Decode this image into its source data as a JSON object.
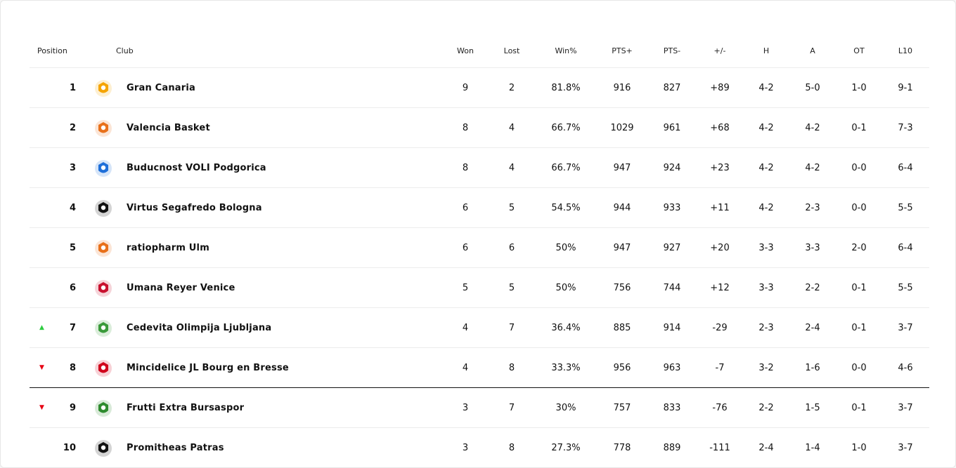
{
  "header": {
    "position": "Position",
    "club": "Club",
    "won": "Won",
    "lost": "Lost",
    "win_pct": "Win%",
    "pts_for": "PTS+",
    "pts_against": "PTS-",
    "diff": "+/-",
    "home": "H",
    "away": "A",
    "ot": "OT",
    "l10": "L10"
  },
  "rows": [
    {
      "position": "1",
      "club": "Gran Canaria",
      "won": "9",
      "lost": "2",
      "win_pct": "81.8%",
      "pts_for": "916",
      "pts_against": "827",
      "diff": "+89",
      "home": "4-2",
      "away": "5-0",
      "ot": "1-0",
      "l10": "9-1",
      "trend": "",
      "logo_icon": "gran-canaria-logo-icon",
      "logo_color": "#f5a400"
    },
    {
      "position": "2",
      "club": "Valencia Basket",
      "won": "8",
      "lost": "4",
      "win_pct": "66.7%",
      "pts_for": "1029",
      "pts_against": "961",
      "diff": "+68",
      "home": "4-2",
      "away": "4-2",
      "ot": "0-1",
      "l10": "7-3",
      "trend": "",
      "logo_icon": "valencia-basket-logo-icon",
      "logo_color": "#e8701a"
    },
    {
      "position": "3",
      "club": "Buducnost VOLI Podgorica",
      "won": "8",
      "lost": "4",
      "win_pct": "66.7%",
      "pts_for": "947",
      "pts_against": "924",
      "diff": "+23",
      "home": "4-2",
      "away": "4-2",
      "ot": "0-0",
      "l10": "6-4",
      "trend": "",
      "logo_icon": "buducnost-logo-icon",
      "logo_color": "#1e6fd9"
    },
    {
      "position": "4",
      "club": "Virtus Segafredo Bologna",
      "won": "6",
      "lost": "5",
      "win_pct": "54.5%",
      "pts_for": "944",
      "pts_against": "933",
      "diff": "+11",
      "home": "4-2",
      "away": "2-3",
      "ot": "0-0",
      "l10": "5-5",
      "trend": "",
      "logo_icon": "virtus-bologna-logo-icon",
      "logo_color": "#111111"
    },
    {
      "position": "5",
      "club": "ratiopharm Ulm",
      "won": "6",
      "lost": "6",
      "win_pct": "50%",
      "pts_for": "947",
      "pts_against": "927",
      "diff": "+20",
      "home": "3-3",
      "away": "3-3",
      "ot": "2-0",
      "l10": "6-4",
      "trend": "",
      "logo_icon": "ratiopharm-ulm-logo-icon",
      "logo_color": "#e8701a"
    },
    {
      "position": "6",
      "club": "Umana Reyer Venice",
      "won": "5",
      "lost": "5",
      "win_pct": "50%",
      "pts_for": "756",
      "pts_against": "744",
      "diff": "+12",
      "home": "3-3",
      "away": "2-2",
      "ot": "0-1",
      "l10": "5-5",
      "trend": "",
      "logo_icon": "reyer-venice-logo-icon",
      "logo_color": "#c8102e"
    },
    {
      "position": "7",
      "club": "Cedevita Olimpija Ljubljana",
      "won": "4",
      "lost": "7",
      "win_pct": "36.4%",
      "pts_for": "885",
      "pts_against": "914",
      "diff": "-29",
      "home": "2-3",
      "away": "2-4",
      "ot": "0-1",
      "l10": "3-7",
      "trend": "up",
      "logo_icon": "cedevita-olimpija-logo-icon",
      "logo_color": "#3a9a3a"
    },
    {
      "position": "8",
      "club": "Mincidelice JL Bourg en Bresse",
      "won": "4",
      "lost": "8",
      "win_pct": "33.3%",
      "pts_for": "956",
      "pts_against": "963",
      "diff": "-7",
      "home": "3-2",
      "away": "1-6",
      "ot": "0-0",
      "l10": "4-6",
      "trend": "down",
      "logo_icon": "jl-bourg-logo-icon",
      "logo_color": "#d0021b"
    },
    {
      "position": "9",
      "club": "Frutti Extra Bursaspor",
      "won": "3",
      "lost": "7",
      "win_pct": "30%",
      "pts_for": "757",
      "pts_against": "833",
      "diff": "-76",
      "home": "2-2",
      "away": "1-5",
      "ot": "0-1",
      "l10": "3-7",
      "trend": "down",
      "logo_icon": "bursaspor-logo-icon",
      "logo_color": "#2e8b2e"
    },
    {
      "position": "10",
      "club": "Promitheas Patras",
      "won": "3",
      "lost": "8",
      "win_pct": "27.3%",
      "pts_for": "778",
      "pts_against": "889",
      "diff": "-111",
      "home": "2-4",
      "away": "1-4",
      "ot": "1-0",
      "l10": "3-7",
      "trend": "",
      "logo_icon": "promitheas-patras-logo-icon",
      "logo_color": "#111111"
    }
  ],
  "trend_symbols": {
    "up": "▲",
    "down": "▼"
  }
}
